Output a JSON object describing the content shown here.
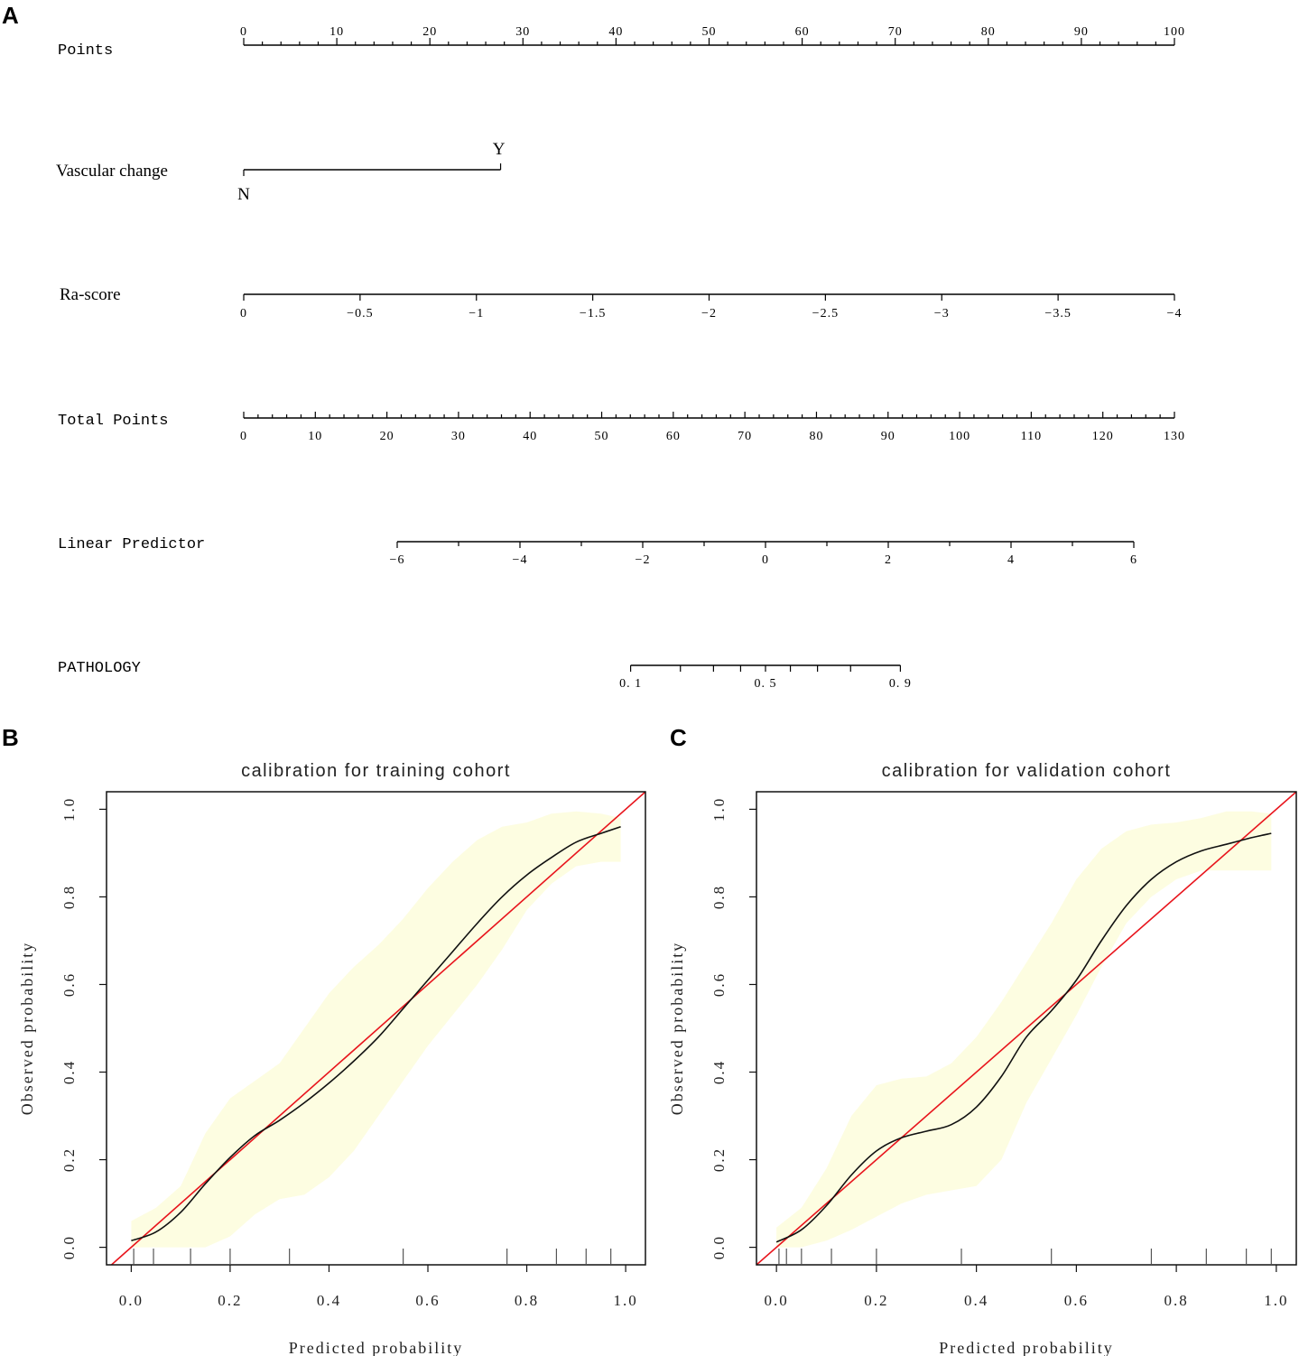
{
  "panels": {
    "a": "A",
    "b": "B",
    "c": "C"
  },
  "chart_data": [
    {
      "type": "nomogram",
      "title": "",
      "rows": [
        {
          "label": "Points",
          "kind": "scale",
          "ticks": [
            0,
            10,
            20,
            30,
            40,
            50,
            60,
            70,
            80,
            90,
            100
          ],
          "tick_labels": [
            "0",
            "10",
            "20",
            "30",
            "40",
            "50",
            "60",
            "70",
            "80",
            "90",
            "100"
          ],
          "minor_per_major": 5
        },
        {
          "label": "Vascular change",
          "kind": "categorical",
          "categories": [
            {
              "label": "N",
              "points": 0
            },
            {
              "label": "Y",
              "points": 27.6
            }
          ]
        },
        {
          "label": "Ra-score",
          "kind": "scale",
          "tick_labels": [
            "0",
            "−0.5",
            "−1",
            "−1.5",
            "−2",
            "−2.5",
            "−3",
            "−3.5",
            "−4"
          ],
          "values": [
            0,
            -0.5,
            -1,
            -1.5,
            -2,
            -2.5,
            -3,
            -3.5,
            -4
          ]
        },
        {
          "label": "Total Points",
          "kind": "scale",
          "ticks": [
            0,
            10,
            20,
            30,
            40,
            50,
            60,
            70,
            80,
            90,
            100,
            110,
            120,
            130
          ],
          "tick_labels": [
            "0",
            "10",
            "20",
            "30",
            "40",
            "50",
            "60",
            "70",
            "80",
            "90",
            "100",
            "110",
            "120",
            "130"
          ],
          "minor_per_major": 5
        },
        {
          "label": "Linear Predictor",
          "kind": "scale",
          "values": [
            -6,
            -4,
            -2,
            0,
            2,
            4,
            6
          ],
          "tick_labels": [
            "−6",
            "−4",
            "−2",
            "0",
            "2",
            "4",
            "6"
          ]
        },
        {
          "label": "PATHOLOGY",
          "kind": "probability",
          "values": [
            0.1,
            0.2,
            0.3,
            0.4,
            0.5,
            0.6,
            0.7,
            0.8,
            0.9
          ],
          "tick_labels": [
            "0.1",
            "0.5",
            "0.9"
          ]
        }
      ]
    },
    {
      "type": "line",
      "title": "calibration for training cohort",
      "xlabel": "Predicted probability",
      "ylabel": "Observed probability",
      "xlim": [
        -0.05,
        1.04
      ],
      "ylim": [
        -0.04,
        1.04
      ],
      "xticks": [
        0.0,
        0.2,
        0.4,
        0.6,
        0.8,
        1.0
      ],
      "xtick_labels": [
        "0.0",
        "0.2",
        "0.4",
        "0.6",
        "0.8",
        "1.0"
      ],
      "yticks": [
        0.0,
        0.2,
        0.4,
        0.6,
        0.8,
        1.0
      ],
      "ytick_labels": [
        "0.0",
        "0.2",
        "0.4",
        "0.6",
        "0.8",
        "1.0"
      ],
      "series": [
        {
          "name": "ideal",
          "color": "#e8141c",
          "x": [
            -0.05,
            1.04
          ],
          "y": [
            -0.05,
            1.04
          ]
        },
        {
          "name": "calibration",
          "color": "#111111",
          "x": [
            0.0,
            0.05,
            0.1,
            0.15,
            0.2,
            0.25,
            0.3,
            0.35,
            0.4,
            0.45,
            0.5,
            0.55,
            0.6,
            0.65,
            0.7,
            0.75,
            0.8,
            0.85,
            0.9,
            0.95,
            0.99
          ],
          "y": [
            0.015,
            0.035,
            0.08,
            0.145,
            0.205,
            0.255,
            0.29,
            0.33,
            0.375,
            0.425,
            0.48,
            0.545,
            0.61,
            0.675,
            0.74,
            0.8,
            0.85,
            0.89,
            0.925,
            0.945,
            0.96
          ]
        }
      ],
      "band": {
        "color": "#fdfde1",
        "x": [
          0.0,
          0.05,
          0.1,
          0.15,
          0.2,
          0.25,
          0.3,
          0.35,
          0.4,
          0.45,
          0.5,
          0.55,
          0.6,
          0.65,
          0.7,
          0.75,
          0.8,
          0.85,
          0.9,
          0.95,
          0.99
        ],
        "upper": [
          0.06,
          0.09,
          0.14,
          0.26,
          0.34,
          0.38,
          0.42,
          0.5,
          0.58,
          0.64,
          0.69,
          0.75,
          0.82,
          0.88,
          0.93,
          0.96,
          0.97,
          0.99,
          0.995,
          0.99,
          0.98
        ],
        "lower": [
          0.0,
          0.0,
          0.0,
          0.0,
          0.025,
          0.075,
          0.11,
          0.12,
          0.16,
          0.22,
          0.3,
          0.38,
          0.46,
          0.53,
          0.6,
          0.68,
          0.77,
          0.83,
          0.87,
          0.88,
          0.88
        ]
      },
      "rug_x": [
        0.005,
        0.045,
        0.12,
        0.2,
        0.32,
        0.55,
        0.76,
        0.86,
        0.92,
        0.97
      ]
    },
    {
      "type": "line",
      "title": "calibration for validation cohort",
      "xlabel": "Predicted probability",
      "ylabel": "Observed probability",
      "xlim": [
        -0.04,
        1.04
      ],
      "ylim": [
        -0.04,
        1.04
      ],
      "xticks": [
        0.0,
        0.2,
        0.4,
        0.6,
        0.8,
        1.0
      ],
      "xtick_labels": [
        "0.0",
        "0.2",
        "0.4",
        "0.6",
        "0.8",
        "1.0"
      ],
      "yticks": [
        0.0,
        0.2,
        0.4,
        0.6,
        0.8,
        1.0
      ],
      "ytick_labels": [
        "0.0",
        "0.2",
        "0.4",
        "0.6",
        "0.8",
        "1.0"
      ],
      "series": [
        {
          "name": "ideal",
          "color": "#e8141c",
          "x": [
            -0.04,
            1.04
          ],
          "y": [
            -0.04,
            1.04
          ]
        },
        {
          "name": "calibration",
          "color": "#111111",
          "x": [
            0.0,
            0.05,
            0.1,
            0.15,
            0.2,
            0.25,
            0.3,
            0.35,
            0.4,
            0.45,
            0.5,
            0.55,
            0.6,
            0.65,
            0.7,
            0.75,
            0.8,
            0.85,
            0.9,
            0.95,
            0.99
          ],
          "y": [
            0.012,
            0.04,
            0.095,
            0.165,
            0.22,
            0.25,
            0.265,
            0.28,
            0.32,
            0.39,
            0.48,
            0.54,
            0.61,
            0.7,
            0.78,
            0.84,
            0.88,
            0.905,
            0.92,
            0.935,
            0.945
          ]
        }
      ],
      "band": {
        "color": "#fdfde1",
        "x": [
          0.0,
          0.05,
          0.1,
          0.15,
          0.2,
          0.25,
          0.3,
          0.35,
          0.4,
          0.45,
          0.5,
          0.55,
          0.6,
          0.65,
          0.7,
          0.75,
          0.8,
          0.85,
          0.9,
          0.95,
          0.99
        ],
        "upper": [
          0.045,
          0.09,
          0.18,
          0.3,
          0.37,
          0.385,
          0.39,
          0.42,
          0.48,
          0.56,
          0.65,
          0.74,
          0.84,
          0.91,
          0.95,
          0.965,
          0.97,
          0.98,
          0.995,
          0.995,
          0.99
        ],
        "lower": [
          0.0,
          0.0,
          0.015,
          0.04,
          0.07,
          0.1,
          0.12,
          0.13,
          0.14,
          0.2,
          0.33,
          0.43,
          0.53,
          0.64,
          0.74,
          0.8,
          0.84,
          0.86,
          0.86,
          0.86,
          0.86
        ]
      },
      "rug_x": [
        0.005,
        0.02,
        0.05,
        0.11,
        0.2,
        0.37,
        0.55,
        0.75,
        0.86,
        0.94,
        0.99
      ]
    }
  ]
}
